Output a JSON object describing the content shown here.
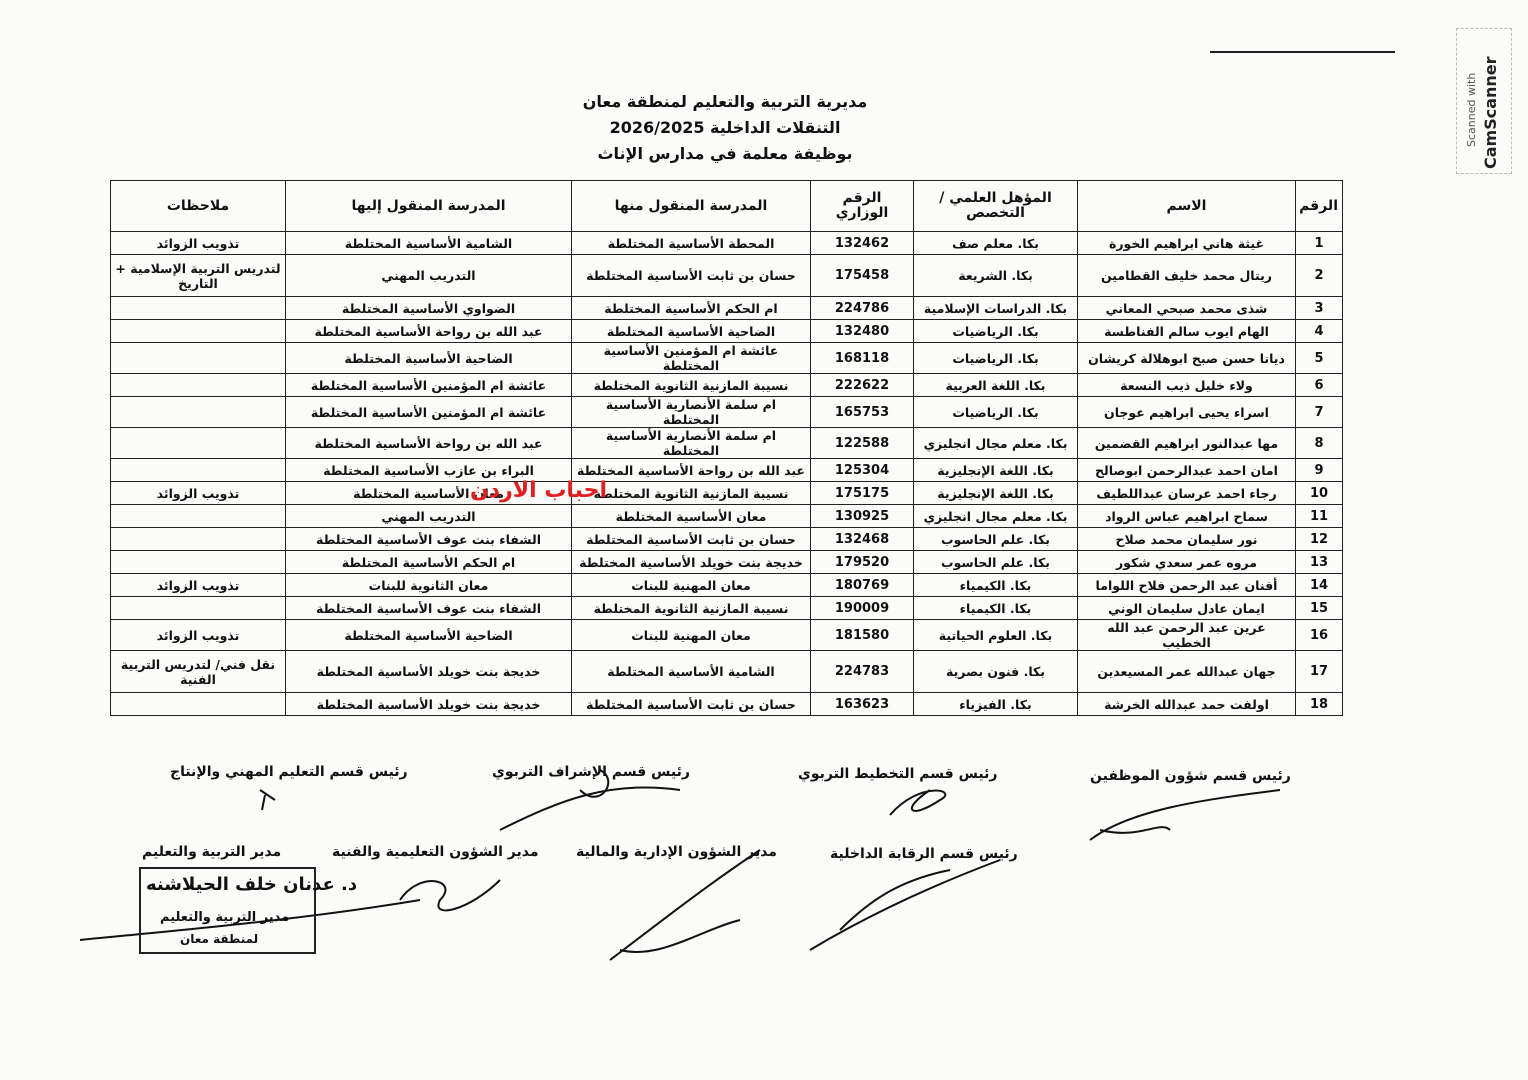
{
  "header": {
    "title": "مديرية التربية والتعليم لمنطقة معان",
    "subtitle": "التنقلات الداخلية 2026/2025",
    "line3": "بوظيفة معلمة في مدارس الإناث"
  },
  "table": {
    "headers": [
      "الرقم",
      "الاسم",
      "المؤهل العلمي /التخصص",
      "الرقم الوزاري",
      "المدرسة المنقول منها",
      "المدرسة المنقول إليها",
      "ملاحظات"
    ],
    "rows": [
      [
        "1",
        "غيثة هاني ابراهيم الخورة",
        "بكا. معلم صف",
        "132462",
        "المحطة الأساسية المختلطة",
        "الشامية الأساسية المختلطة",
        "تذويب الزوائد"
      ],
      [
        "2",
        "ريتال محمد خليف القطامين",
        "بكا. الشريعة",
        "175458",
        "حسان بن ثابت الأساسية المختلطة",
        "التدريب المهني",
        "لتدريس التربية الإسلامية + التاريخ"
      ],
      [
        "3",
        "شذى محمد صبحي المعاني",
        "بكا. الدراسات الإسلامية",
        "224786",
        "ام الحكم الأساسية المختلطة",
        "الضواوي الأساسية المختلطة",
        null
      ],
      [
        "4",
        "الهام ايوب سالم الفناطسة",
        "بكا. الرياضيات",
        "132480",
        "الضاحية الأساسية المختلطة",
        "عبد الله بن رواحة الأساسية المختلطة",
        null
      ],
      [
        "5",
        "ديانا حسن صبح ابوهلالة كريشان",
        "بكا. الرياضيات",
        "168118",
        "عائشة ام المؤمنين الأساسية المختلطة",
        "الضاحية الأساسية المختلطة",
        null
      ],
      [
        "6",
        "ولاء خليل ذيب النسعة",
        "بكا. اللغة العربية",
        "222622",
        "نسيبة المازنية الثانوية المختلطة",
        "عائشة ام المؤمنين الأساسية المختلطة",
        null
      ],
      [
        "7",
        "اسراء يحيى ابراهيم عوجان",
        "بكا. الرياضيات",
        "165753",
        "ام سلمة الأنصارية الأساسية المختلطة",
        "عائشة ام المؤمنين الأساسية المختلطة",
        null
      ],
      [
        "8",
        "مها عبدالنور ابراهيم القضمين",
        "بكا. معلم مجال انجليزي",
        "122588",
        "ام سلمة الأنصارية الأساسية المختلطة",
        "عبد الله بن رواحة الأساسية المختلطة",
        null
      ],
      [
        "9",
        "امان احمد عبدالرحمن ابوصالح",
        "بكا. اللغة الإنجليزية",
        "125304",
        "عبد الله بن رواحة الأساسية المختلطة",
        "البراء بن عازب الأساسية المختلطة",
        null
      ],
      [
        "10",
        "رجاء احمد عرسان عبداللطيف",
        "بكا. اللغة الإنجليزية",
        "175175",
        "نسيبة المازنية الثانوية المختلطة",
        "معان الأساسية المختلطة",
        "تذويب الزوائد"
      ],
      [
        "11",
        "سماح ابراهيم عباس الرواد",
        "بكا. معلم مجال انجليزي",
        "130925",
        "معان الأساسية المختلطة",
        "التدريب المهني",
        null
      ],
      [
        "12",
        "نور سليمان محمد صلاح",
        "بكا. علم الحاسوب",
        "132468",
        "حسان بن ثابت الأساسية المختلطة",
        "الشفاء بنت عوف الأساسية المختلطة",
        null
      ],
      [
        "13",
        "مروه عمر سعدي شكور",
        "بكا. علم الحاسوب",
        "179520",
        "خديجة بنت خويلد الأساسية المختلطة",
        "ام الحكم الأساسية المختلطة",
        null
      ],
      [
        "14",
        "أفنان عبد الرحمن فلاح اللواما",
        "بكا. الكيمياء",
        "180769",
        "معان المهنية للبنات",
        "معان الثانوية للبنات",
        "تذويب الزوائد"
      ],
      [
        "15",
        "ايمان عادل سليمان الوني",
        "بكا. الكيمياء",
        "190009",
        "نسيبة المازنية الثانوية المختلطة",
        "الشفاء بنت عوف الأساسية المختلطة",
        null
      ],
      [
        "16",
        "عرين عبد الرحمن عبد الله الخطيب",
        "بكا. العلوم الحياتية",
        "181580",
        "معان المهنية للبنات",
        "الضاحية الأساسية المختلطة",
        "تذويب الزوائد"
      ],
      [
        "17",
        "جهان عبدالله عمر المسيعدين",
        "بكا. فنون بصرية",
        "224783",
        "الشامية الأساسية المختلطة",
        "خديجة بنت خويلد الأساسية المختلطة",
        "نقل فني/ لتدريس التربية الفنية"
      ],
      [
        "18",
        "اولفت حمد عبدالله الخرشة",
        "بكا. الفيزياء",
        "163623",
        "حسان بن ثابت الأساسية المختلطة",
        "خديجة بنت خويلد الأساسية المختلطة",
        null
      ]
    ]
  },
  "watermark": "احباب الاردن",
  "signatures": [
    "رئيس قسم شؤون الموظفين",
    "رئيس قسم التخطيط التربوي",
    "رئيس قسم الإشراف التربوي",
    "رئيس قسم التعليم المهني والإنتاج",
    "رئيس قسم الرقابة الداخلية",
    "مدير الشؤون الإدارية والمالية",
    "مدير الشؤون التعليمية والفنية",
    "مدير التربية والتعليم"
  ],
  "stamp": {
    "name": "د. عدنان خلف الحيلاشنه",
    "role": "مدير التربية والتعليم",
    "region": "لمنطقة معان"
  },
  "scanner": {
    "line1": "Scanned with",
    "line2": "CamScanner"
  }
}
